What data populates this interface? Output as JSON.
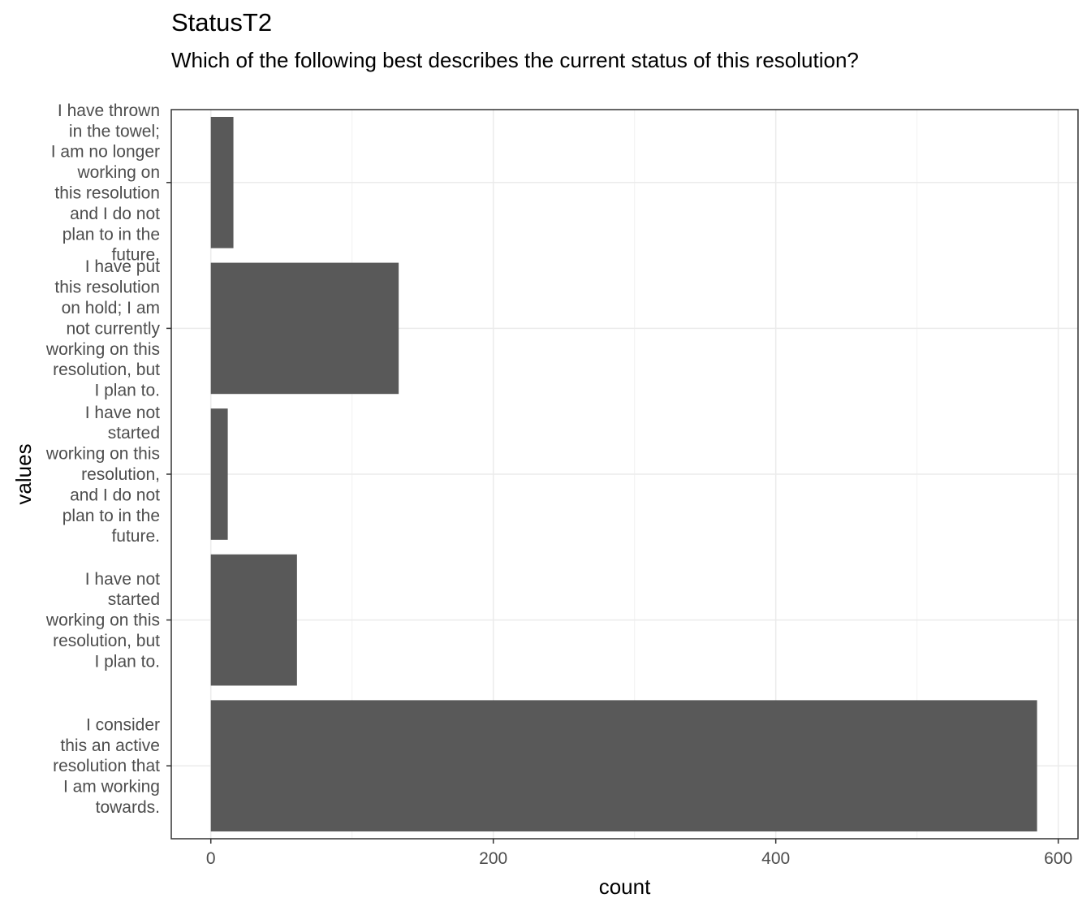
{
  "chart_data": {
    "type": "bar",
    "orientation": "horizontal",
    "title": "StatusT2",
    "subtitle": "Which of the following best describes the current status of this resolution?",
    "xlabel": "count",
    "ylabel": "values",
    "xlim": [
      -28,
      614
    ],
    "xticks": [
      0,
      200,
      400,
      600
    ],
    "grid": true,
    "bar_color": "#595959",
    "categories": [
      [
        "I have thrown",
        "in the towel;",
        "I am no longer",
        "working on",
        "this resolution",
        "and I do not",
        "plan to in the",
        "future."
      ],
      [
        "I have put",
        "this resolution",
        "on hold; I am",
        "not currently",
        "working on this",
        "resolution, but",
        "I plan to."
      ],
      [
        "I have not",
        "started",
        "working on this",
        "resolution,",
        "and I do not",
        "plan to in the",
        "future."
      ],
      [
        "I have not",
        "started",
        "working on this",
        "resolution, but",
        "I plan to."
      ],
      [
        "I consider",
        "this an active",
        "resolution that",
        "I am working",
        "towards."
      ]
    ],
    "values": [
      16,
      133,
      12,
      61,
      585
    ]
  }
}
